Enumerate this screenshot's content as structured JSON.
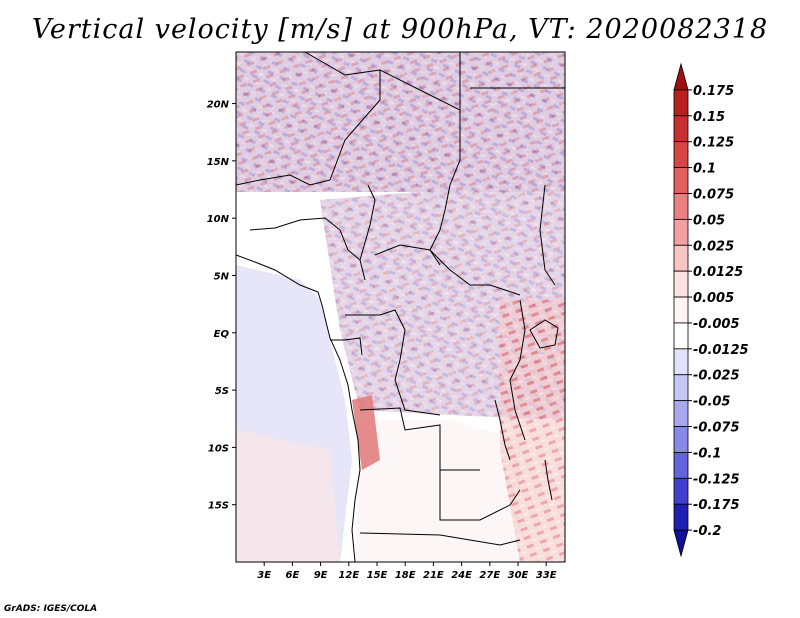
{
  "title": "Vertical velocity [m/s] at 900hPa, VT: 2020082318",
  "credit": "GrADS: IGES/COLA",
  "chart_data": {
    "type": "heatmap",
    "title": "Vertical velocity [m/s] at 900hPa, VT: 2020082318",
    "variable": "Vertical velocity",
    "units": "m/s",
    "level": "900hPa",
    "valid_time": "2020082318",
    "x_range": [
      0,
      35
    ],
    "y_range": [
      -20,
      24.5
    ],
    "x_ticks": [
      {
        "value": 3,
        "label": "3E"
      },
      {
        "value": 6,
        "label": "6E"
      },
      {
        "value": 9,
        "label": "9E"
      },
      {
        "value": 12,
        "label": "12E"
      },
      {
        "value": 15,
        "label": "15E"
      },
      {
        "value": 18,
        "label": "18E"
      },
      {
        "value": 21,
        "label": "21E"
      },
      {
        "value": 24,
        "label": "24E"
      },
      {
        "value": 27,
        "label": "27E"
      },
      {
        "value": 30,
        "label": "30E"
      },
      {
        "value": 33,
        "label": "33E"
      }
    ],
    "y_ticks": [
      {
        "value": 20,
        "label": "20N"
      },
      {
        "value": 15,
        "label": "15N"
      },
      {
        "value": 10,
        "label": "10N"
      },
      {
        "value": 5,
        "label": "5N"
      },
      {
        "value": 0,
        "label": "EQ"
      },
      {
        "value": -5,
        "label": "5S"
      },
      {
        "value": -10,
        "label": "10S"
      },
      {
        "value": -15,
        "label": "15S"
      }
    ],
    "colorbar": {
      "labels": [
        "0.175",
        "0.15",
        "0.125",
        "0.1",
        "0.075",
        "0.05",
        "0.025",
        "0.0125",
        "0.005",
        "-0.005",
        "-0.0125",
        "-0.025",
        "-0.05",
        "-0.075",
        "-0.1",
        "-0.125",
        "-0.175",
        "-0.2"
      ],
      "colors": [
        "#a01010",
        "#b82020",
        "#c83030",
        "#d84545",
        "#e26060",
        "#ec8080",
        "#f4a0a0",
        "#f8c4c4",
        "#fce2e2",
        "#fff4f4",
        "#ffffff",
        "#e2e2fa",
        "#c6c6f4",
        "#a8a8ee",
        "#8888e6",
        "#6464dc",
        "#4040cc",
        "#2020b0",
        "#10109a"
      ]
    }
  }
}
